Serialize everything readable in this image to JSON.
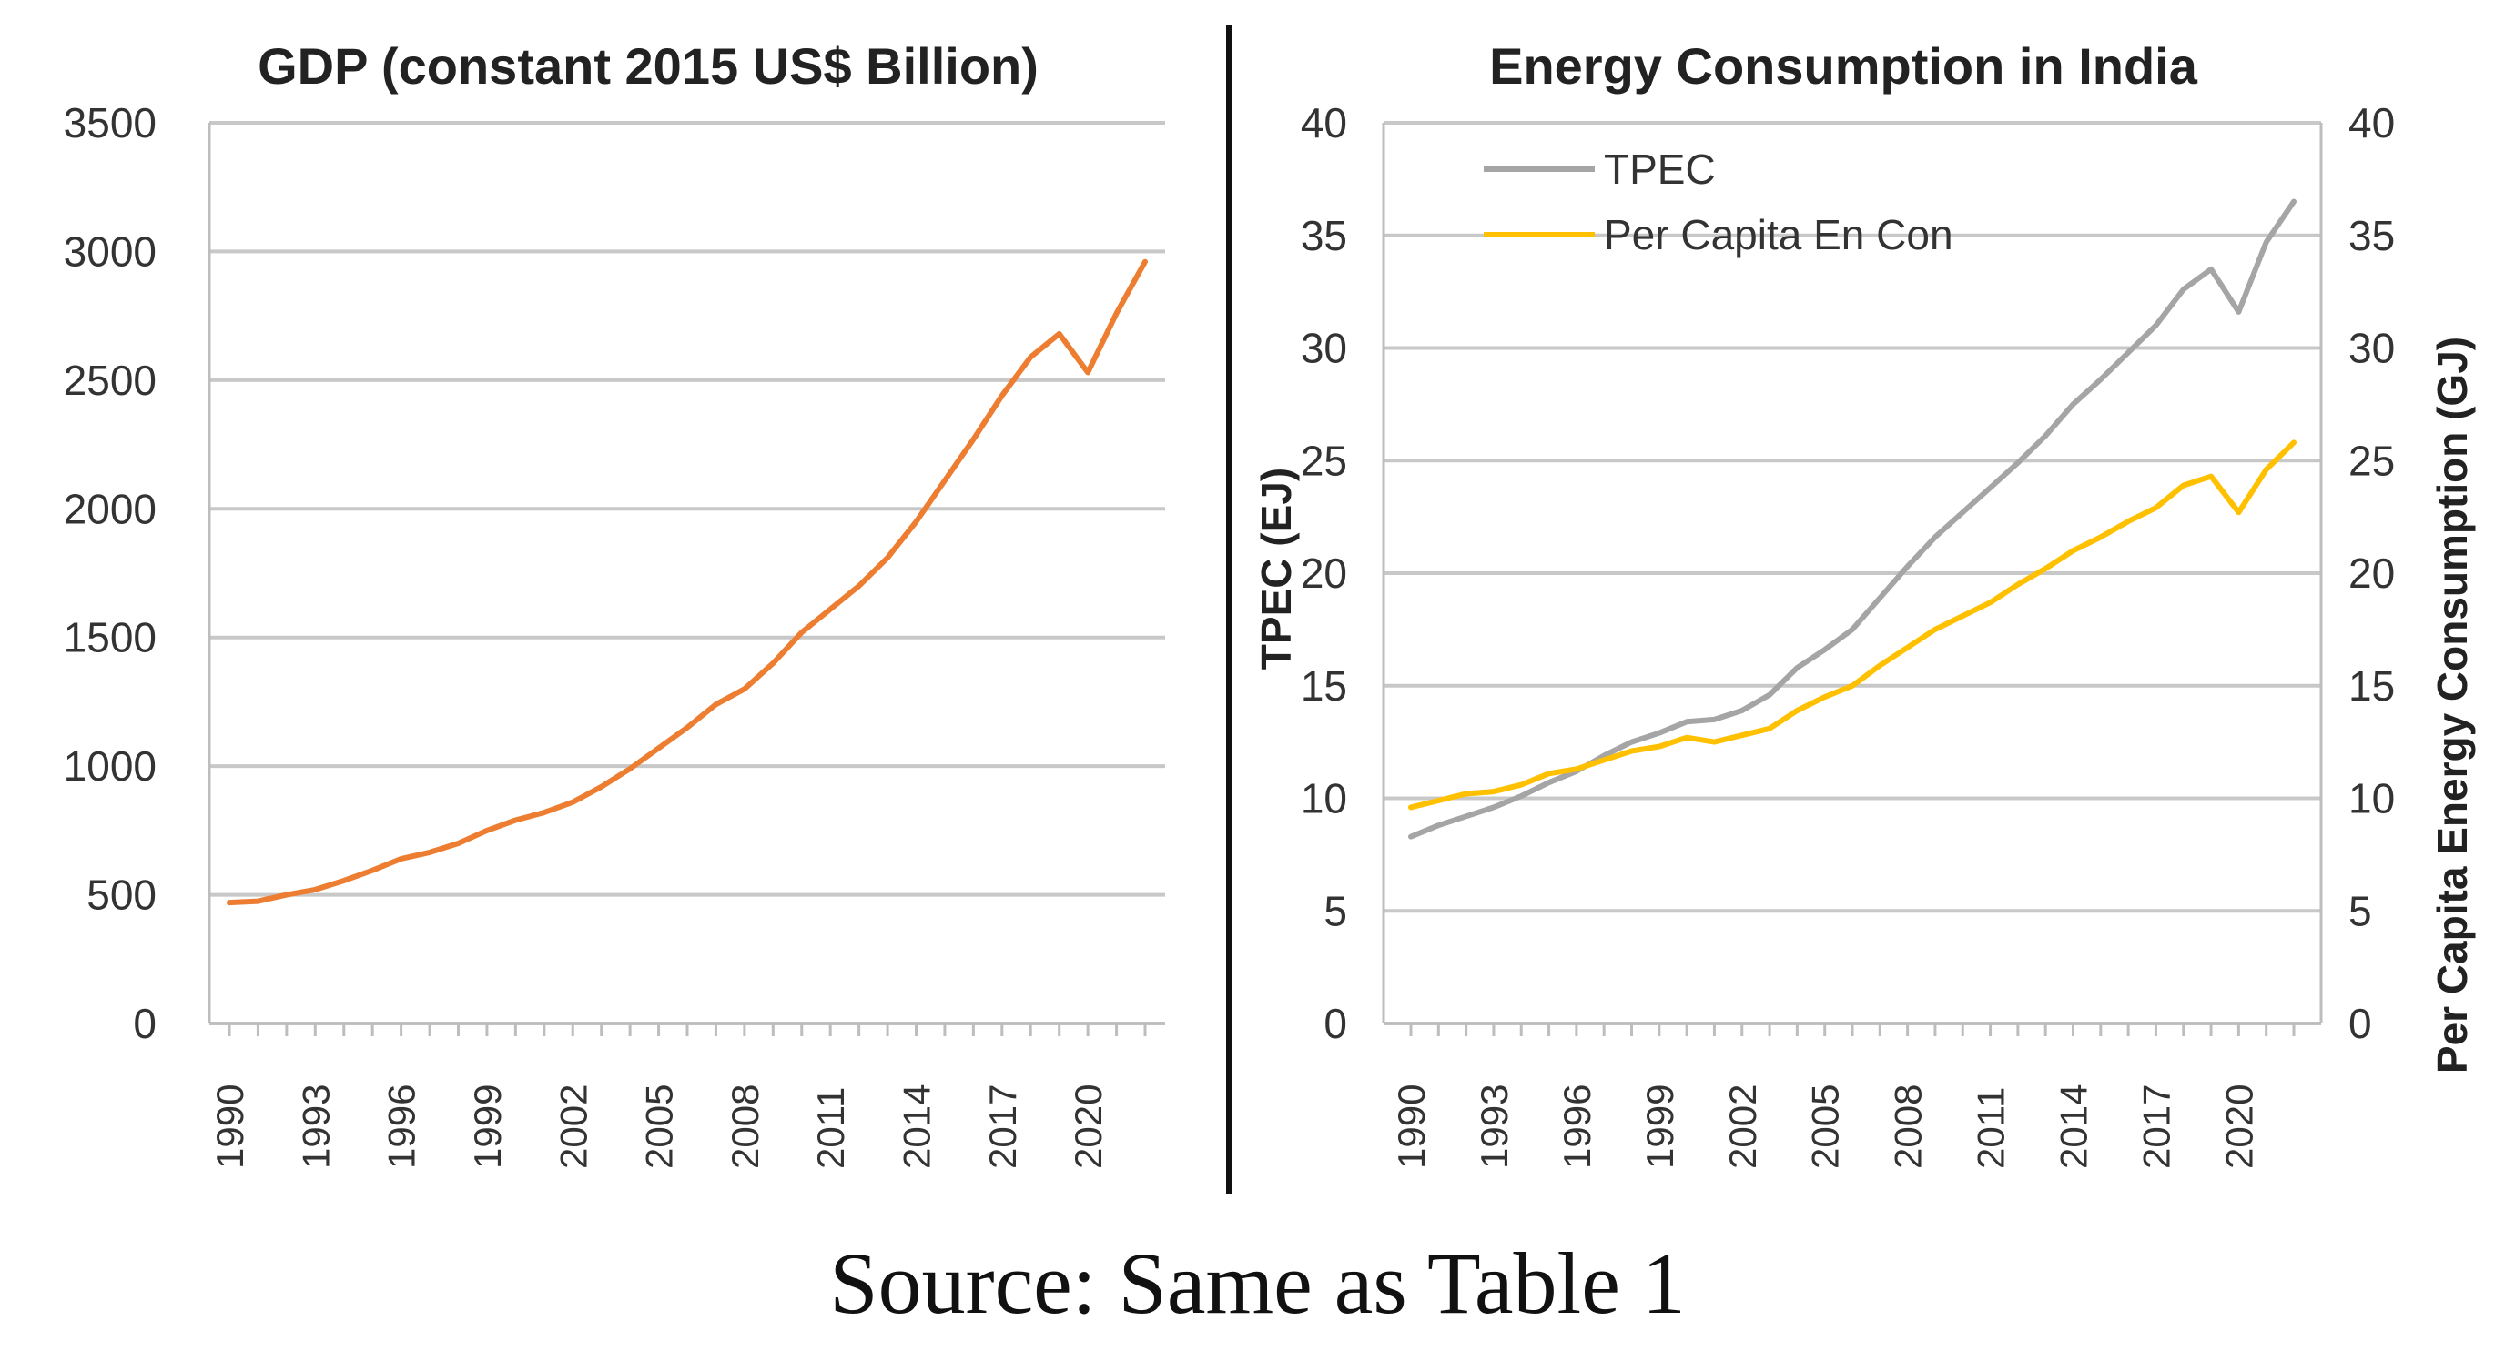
{
  "caption": "Source: Same as Table 1",
  "chart_data": [
    {
      "type": "line",
      "title": "GDP (constant 2015 US$ Billion)",
      "xlabel": "",
      "ylabel": "",
      "ylim": [
        0,
        3500
      ],
      "yticks": [
        "0",
        "500",
        "1000",
        "1500",
        "2000",
        "2500",
        "3000",
        "3500"
      ],
      "x": [
        1990,
        1991,
        1992,
        1993,
        1994,
        1995,
        1996,
        1997,
        1998,
        1999,
        2000,
        2001,
        2002,
        2003,
        2004,
        2005,
        2006,
        2007,
        2008,
        2009,
        2010,
        2011,
        2012,
        2013,
        2014,
        2015,
        2016,
        2017,
        2018,
        2019,
        2020,
        2021,
        2022
      ],
      "xticks": [
        "1990",
        "1993",
        "1996",
        "1999",
        "2002",
        "2005",
        "2008",
        "2011",
        "2014",
        "2017",
        "2020"
      ],
      "series": [
        {
          "name": "GDP",
          "color": "#ED7D31",
          "values": [
            470,
            475,
            500,
            520,
            555,
            595,
            640,
            665,
            700,
            750,
            790,
            820,
            860,
            920,
            990,
            1070,
            1150,
            1240,
            1300,
            1400,
            1520,
            1610,
            1700,
            1810,
            1950,
            2110,
            2270,
            2440,
            2590,
            2680,
            2530,
            2760,
            2960
          ]
        }
      ]
    },
    {
      "type": "line",
      "title": "Energy Consumption  in India",
      "xlabel": "",
      "ylabel": "TPEC (EJ)",
      "ylabel_right": "Per Capita Energy Consumption (GJ)",
      "ylim": [
        0,
        40
      ],
      "ylim_right": [
        0,
        40
      ],
      "yticks": [
        "0",
        "5",
        "10",
        "15",
        "20",
        "25",
        "30",
        "35",
        "40"
      ],
      "x": [
        1990,
        1991,
        1992,
        1993,
        1994,
        1995,
        1996,
        1997,
        1998,
        1999,
        2000,
        2001,
        2002,
        2003,
        2004,
        2005,
        2006,
        2007,
        2008,
        2009,
        2010,
        2011,
        2012,
        2013,
        2014,
        2015,
        2016,
        2017,
        2018,
        2019,
        2020,
        2021,
        2022
      ],
      "xticks": [
        "1990",
        "1993",
        "1996",
        "1999",
        "2002",
        "2005",
        "2008",
        "2011",
        "2014",
        "2017",
        "2020"
      ],
      "series": [
        {
          "name": "TPEC",
          "color": "#A5A5A5",
          "values": [
            8.3,
            8.8,
            9.2,
            9.6,
            10.1,
            10.7,
            11.2,
            11.9,
            12.5,
            12.9,
            13.4,
            13.5,
            13.9,
            14.6,
            15.8,
            16.6,
            17.5,
            18.9,
            20.3,
            21.6,
            22.7,
            23.8,
            24.9,
            26.1,
            27.5,
            28.6,
            29.8,
            31.0,
            32.6,
            33.5,
            31.6,
            34.7,
            36.5
          ]
        },
        {
          "name": "Per Capita En Con",
          "color": "#FFC000",
          "values": [
            9.6,
            9.9,
            10.2,
            10.3,
            10.6,
            11.1,
            11.3,
            11.7,
            12.1,
            12.3,
            12.7,
            12.5,
            12.8,
            13.1,
            13.9,
            14.5,
            15.0,
            15.9,
            16.7,
            17.5,
            18.1,
            18.7,
            19.5,
            20.2,
            21.0,
            21.6,
            22.3,
            22.9,
            23.9,
            24.3,
            22.7,
            24.6,
            25.8
          ]
        }
      ]
    }
  ]
}
